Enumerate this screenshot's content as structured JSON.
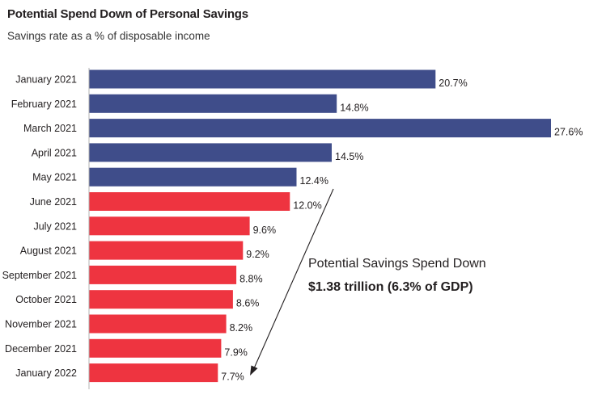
{
  "header": {
    "title": "Potential Spend Down of Personal Savings",
    "subtitle": "Savings rate as a % of disposable income"
  },
  "annotation": {
    "label": "Potential Savings Spend Down",
    "value": "$1.38 trillion (6.3% of GDP)"
  },
  "colors": {
    "historical": "#3f4d8a",
    "projected": "#ee3440",
    "axis": "#b3b3b3",
    "text": "#231f20"
  },
  "chart_data": {
    "type": "bar",
    "orientation": "horizontal",
    "title": "Potential Spend Down of Personal Savings",
    "subtitle": "Savings rate as a % of disposable income",
    "categories": [
      "January 2021",
      "February 2021",
      "March 2021",
      "April 2021",
      "May 2021",
      "June 2021",
      "July 2021",
      "August 2021",
      "September 2021",
      "October 2021",
      "November 2021",
      "December 2021",
      "January 2022"
    ],
    "values": [
      20.7,
      14.8,
      27.6,
      14.5,
      12.4,
      12.0,
      9.6,
      9.2,
      8.8,
      8.6,
      8.2,
      7.9,
      7.7
    ],
    "data_labels": [
      "20.7%",
      "14.8%",
      "27.6%",
      "14.5%",
      "12.4%",
      "12.0%",
      "9.6%",
      "9.2%",
      "8.8%",
      "8.6%",
      "8.2%",
      "7.9%",
      "7.7%"
    ],
    "bar_colors": [
      "historical",
      "historical",
      "historical",
      "historical",
      "historical",
      "projected",
      "projected",
      "projected",
      "projected",
      "projected",
      "projected",
      "projected",
      "projected"
    ],
    "xlim": [
      0,
      27.6
    ],
    "grid": false,
    "legend": "none"
  }
}
